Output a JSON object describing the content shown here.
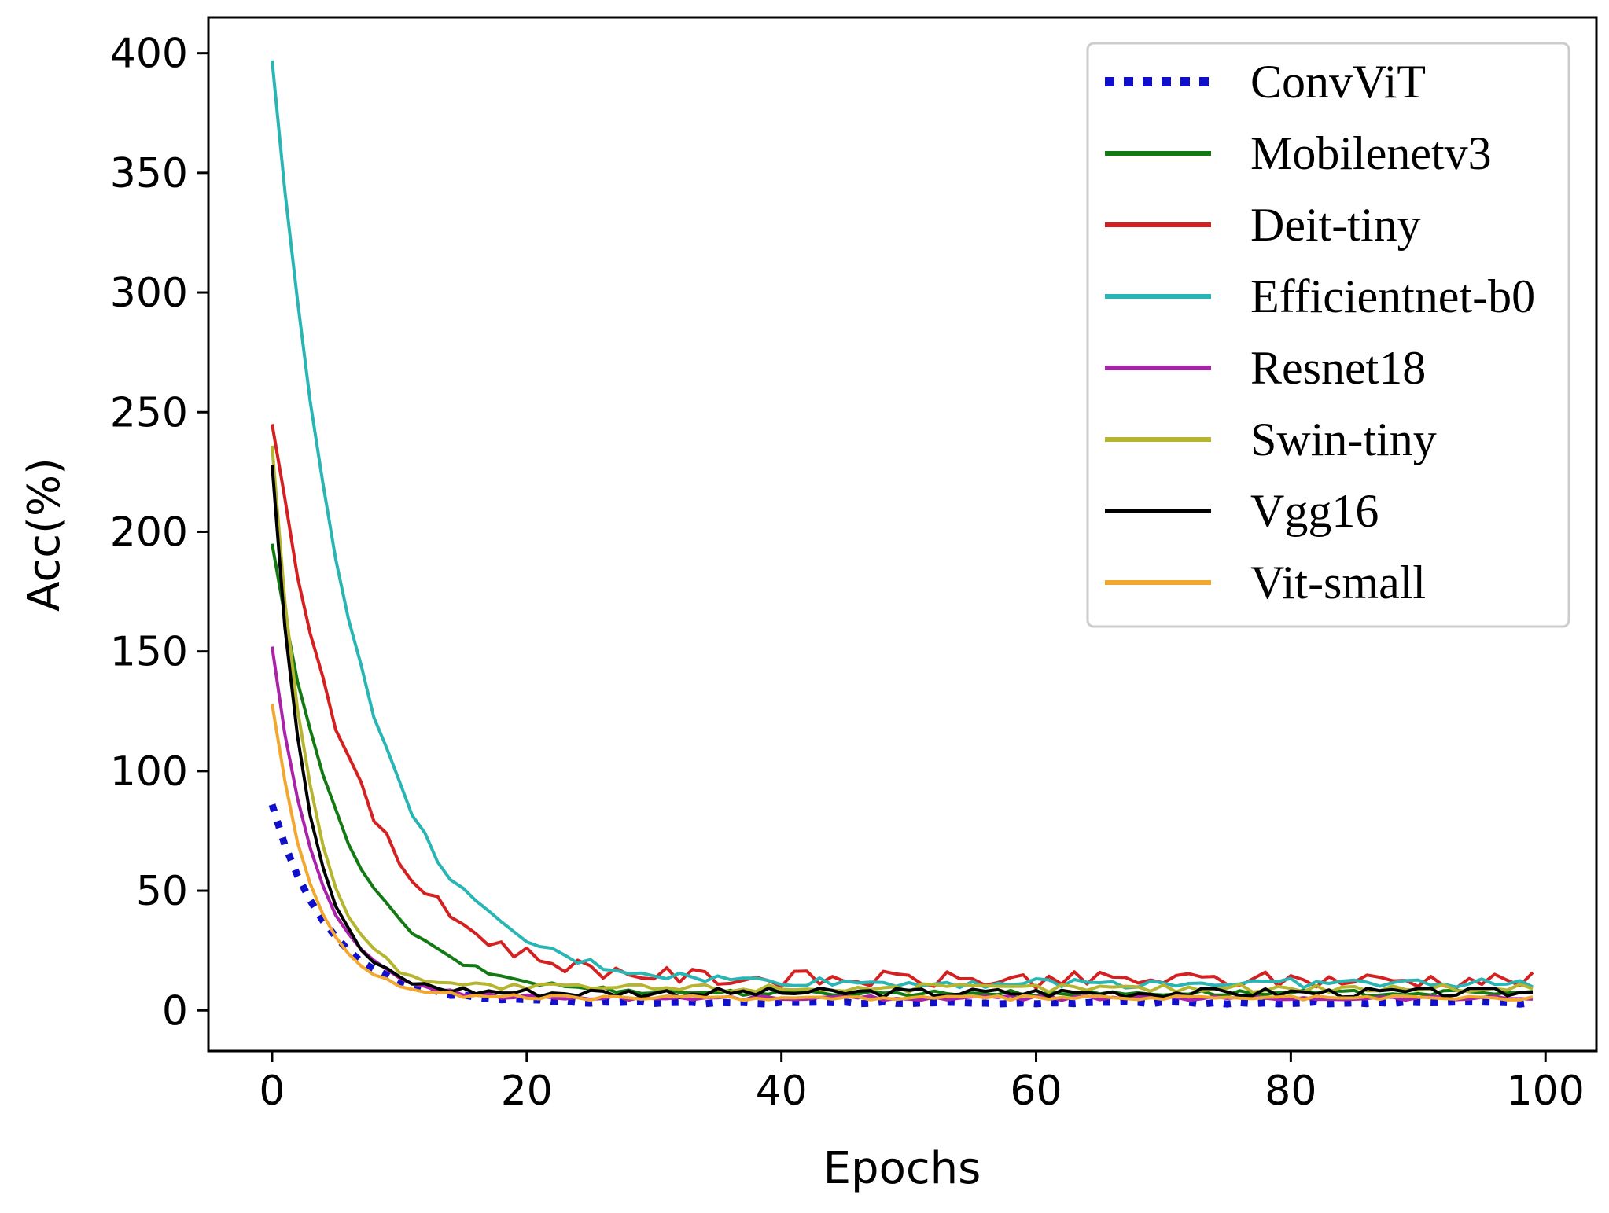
{
  "chart_data": {
    "type": "line",
    "title": "",
    "xlabel": "Epochs",
    "ylabel": "Acc(%)",
    "xlim": [
      -5,
      104
    ],
    "ylim": [
      -17,
      415
    ],
    "xticks": [
      0,
      20,
      40,
      60,
      80,
      100
    ],
    "yticks": [
      0,
      50,
      100,
      150,
      200,
      250,
      300,
      350,
      400
    ],
    "grid": false,
    "legend_position": "top-right",
    "series": [
      {
        "name": "ConvViT",
        "color": "#1010cc",
        "style": "dotted",
        "start": 86,
        "end": 3,
        "tau": 4.5,
        "noise": 0.5
      },
      {
        "name": "Mobilenetv3",
        "color": "#137a13",
        "style": "solid",
        "start": 195,
        "end": 7,
        "tau": 5.5,
        "noise": 1.2
      },
      {
        "name": "Deit-tiny",
        "color": "#d42020",
        "style": "solid",
        "start": 245,
        "end": 12,
        "tau": 6.5,
        "noise": 3.5
      },
      {
        "name": "Efficientnet-b0",
        "color": "#2ab5b5",
        "style": "solid",
        "start": 397,
        "end": 11,
        "tau": 6.5,
        "noise": 2.0
      },
      {
        "name": "Resnet18",
        "color": "#aa22aa",
        "style": "solid",
        "start": 152,
        "end": 5,
        "tau": 3.5,
        "noise": 1.0
      },
      {
        "name": "Swin-tiny",
        "color": "#b5b530",
        "style": "solid",
        "start": 236,
        "end": 9,
        "tau": 3.0,
        "noise": 1.8
      },
      {
        "name": "Vgg16",
        "color": "#000000",
        "style": "solid",
        "start": 228,
        "end": 7,
        "tau": 2.8,
        "noise": 2.0
      },
      {
        "name": "Vit-small",
        "color": "#f2a830",
        "style": "solid",
        "start": 128,
        "end": 5,
        "tau": 3.2,
        "noise": 1.0
      }
    ]
  }
}
